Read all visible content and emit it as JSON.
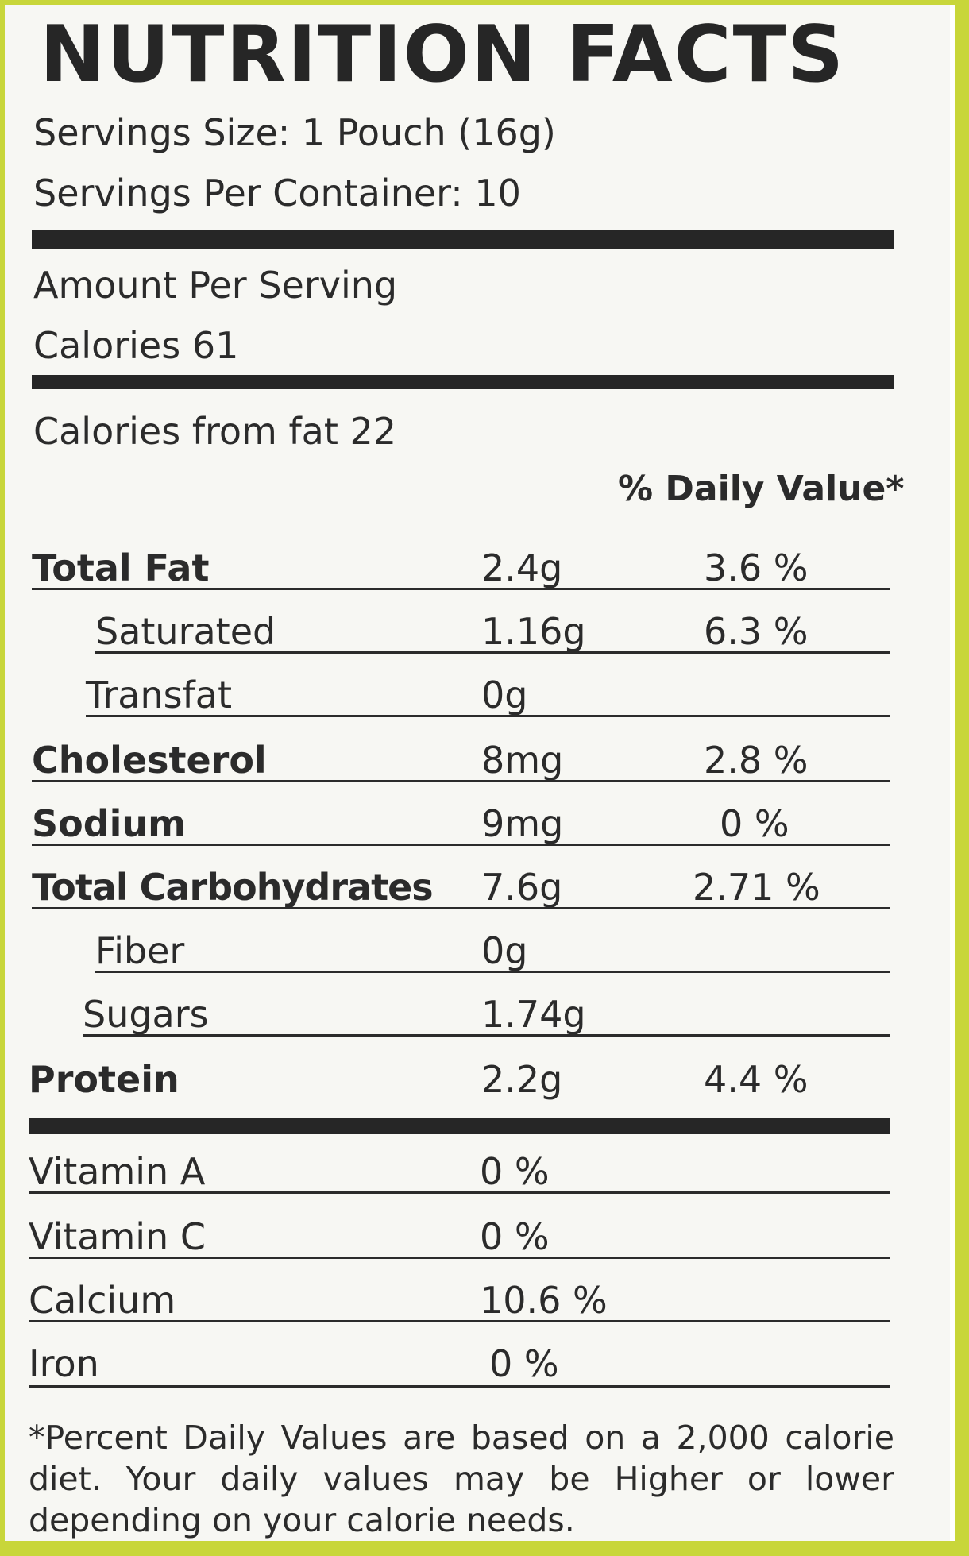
{
  "title": "NUTRITION FACTS",
  "serving_size": "Servings Size: 1 Pouch (16g)",
  "servings_per_container": "Servings Per Container: 10",
  "amount_per_serving": "Amount Per Serving",
  "calories": "Calories  61",
  "calories_from_fat": "Calories from fat 22",
  "daily_value_header": "% Daily Value*",
  "nutrients": [
    {
      "name": "Total Fat",
      "amount": "2.4g",
      "dv": "3.6 %"
    },
    {
      "name": "Saturated",
      "amount": "1.16g",
      "dv": "6.3 %"
    },
    {
      "name": "Transfat",
      "amount": "0g",
      "dv": ""
    },
    {
      "name": "Cholesterol",
      "amount": "8mg",
      "dv": "2.8 %"
    },
    {
      "name": "Sodium",
      "amount": "9mg",
      "dv": "0 %"
    },
    {
      "name": "Total Carbohydrates",
      "amount": "7.6g",
      "dv": "2.71 %"
    },
    {
      "name": "Fiber",
      "amount": "0g",
      "dv": ""
    },
    {
      "name": "Sugars",
      "amount": "1.74g",
      "dv": ""
    },
    {
      "name": "Protein",
      "amount": "2.2g",
      "dv": "4.4 %"
    }
  ],
  "vitamins": [
    {
      "name": "Vitamin A",
      "value": "0 %"
    },
    {
      "name": "Vitamin C",
      "value": "0 %"
    },
    {
      "name": "Calcium",
      "value": "10.6 %"
    },
    {
      "name": "Iron",
      "value": "0 %"
    }
  ],
  "footnote": "*Percent Daily Values are based on a 2,000 calorie diet. Your daily values may be Higher or lower depending on your calorie needs."
}
